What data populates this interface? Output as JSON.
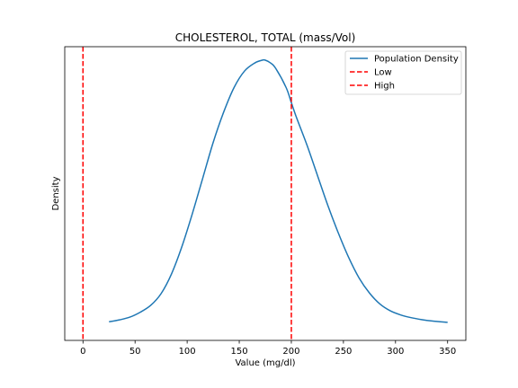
{
  "chart_data": {
    "type": "line",
    "title": "CHOLESTEROL, TOTAL (mass/Vol)",
    "xlabel": "Value (mg/dl)",
    "ylabel": "Density",
    "xlim": [
      -17.5,
      367.5
    ],
    "ylim": [
      0,
      1.0
    ],
    "x_ticks": [
      0,
      50,
      100,
      150,
      200,
      250,
      300,
      350
    ],
    "y_ticks_visible": false,
    "grid": false,
    "legend_position": "top-right",
    "series": [
      {
        "name": "Population Density",
        "kind": "curve",
        "color": "#1f77b4",
        "x": [
          25,
          35,
          45,
          55,
          65,
          75,
          85,
          95,
          105,
          115,
          125,
          135,
          145,
          155,
          165,
          172,
          175,
          180,
          185,
          195,
          200,
          205,
          215,
          225,
          235,
          245,
          255,
          265,
          275,
          285,
          295,
          305,
          315,
          325,
          335,
          350
        ],
        "y": [
          0.045,
          0.052,
          0.062,
          0.08,
          0.105,
          0.148,
          0.22,
          0.32,
          0.44,
          0.57,
          0.7,
          0.81,
          0.9,
          0.96,
          0.99,
          1.0,
          1.0,
          0.99,
          0.97,
          0.9,
          0.845,
          0.79,
          0.69,
          0.58,
          0.47,
          0.37,
          0.28,
          0.205,
          0.15,
          0.11,
          0.085,
          0.07,
          0.06,
          0.053,
          0.048,
          0.043
        ]
      },
      {
        "name": "Low",
        "kind": "vline",
        "color": "#ff0000",
        "x": 0
      },
      {
        "name": "High",
        "kind": "vline",
        "color": "#ff0000",
        "x": 200
      }
    ]
  }
}
